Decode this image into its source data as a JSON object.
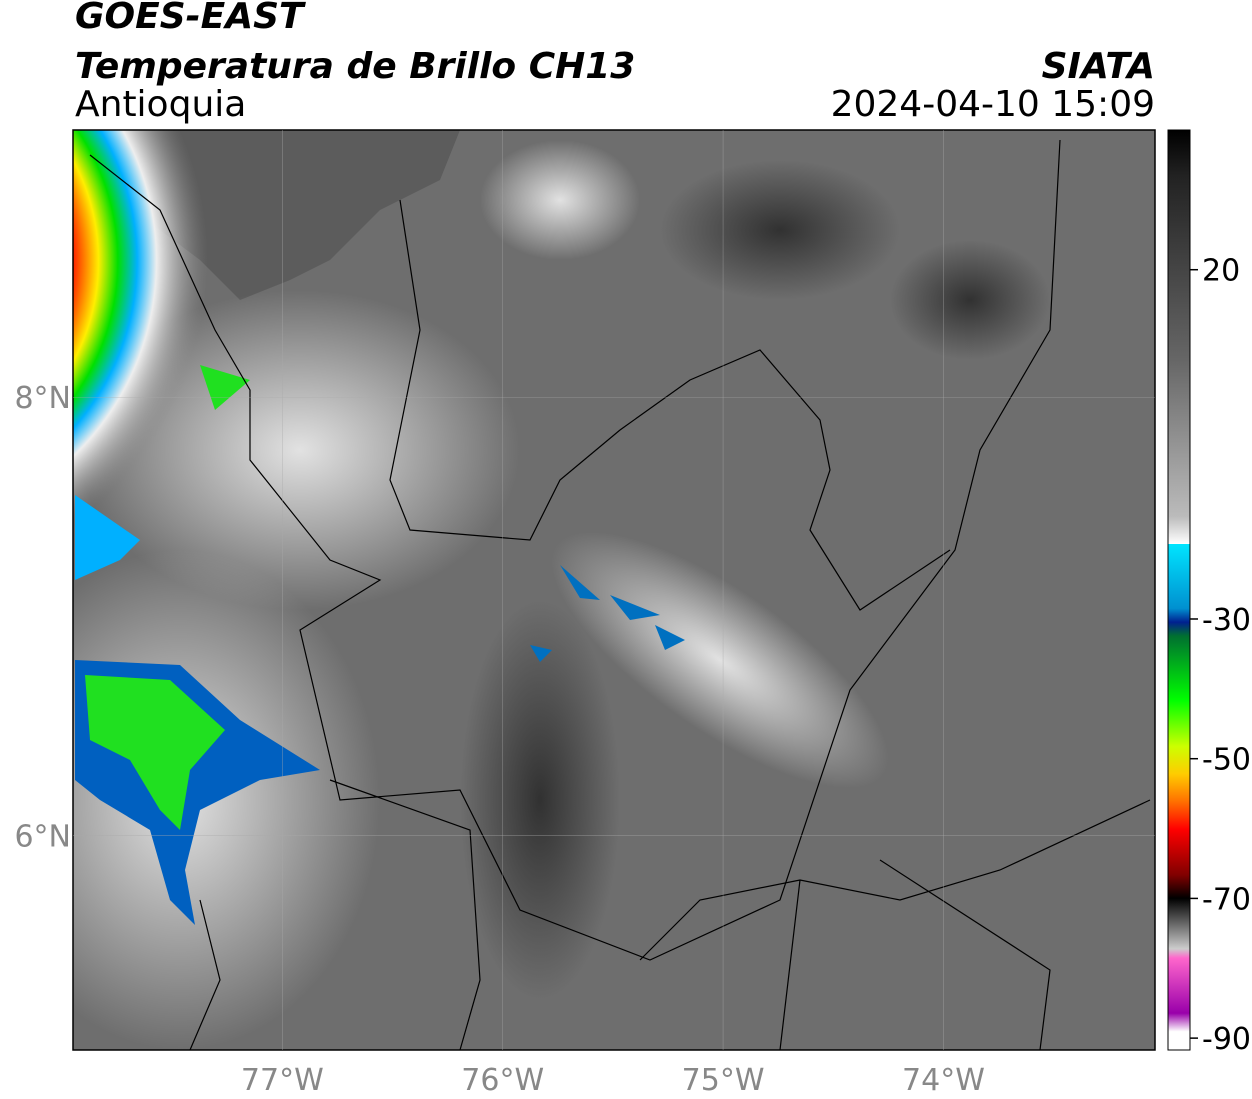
{
  "header": {
    "title": "GOES-EAST",
    "subtitle": "Temperatura de Brillo CH13",
    "region": "Antioquia",
    "source": "SIATA",
    "datetime": "2024-04-10 15:09"
  },
  "map": {
    "xlim": [
      -77.95,
      -73.04
    ],
    "ylim": [
      5.02,
      9.22
    ],
    "xticks": [
      {
        "value": -77,
        "label": "77°W"
      },
      {
        "value": -76,
        "label": "76°W"
      },
      {
        "value": -75,
        "label": "75°W"
      },
      {
        "value": -74,
        "label": "74°W"
      }
    ],
    "yticks": [
      {
        "value": 8,
        "label": "8°N"
      },
      {
        "value": 6,
        "label": "6°N"
      }
    ]
  },
  "colorbar": {
    "lim": [
      -91.7,
      40
    ],
    "ticks": [
      20,
      -30,
      -50,
      -70,
      -90
    ]
  }
}
